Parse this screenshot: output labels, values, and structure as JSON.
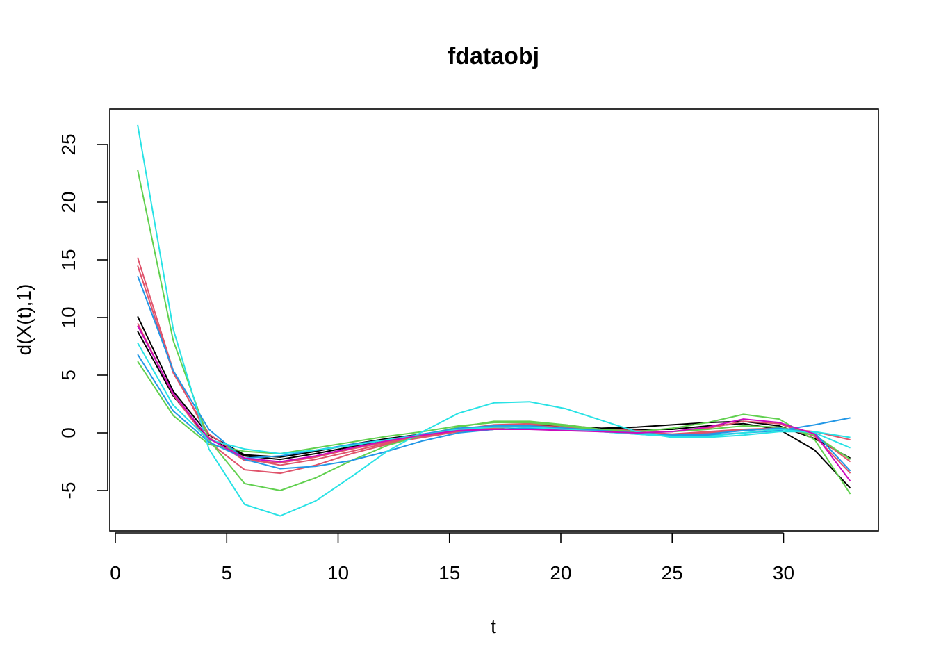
{
  "chart_data": {
    "type": "line",
    "title": "fdataobj",
    "xlabel": "t",
    "ylabel": "d(X(t),1)",
    "xlim": [
      0,
      33.5
    ],
    "ylim": [
      -8.5,
      28
    ],
    "xticks": [
      0,
      5,
      10,
      15,
      20,
      25,
      30
    ],
    "yticks": [
      -5,
      0,
      5,
      10,
      15,
      20,
      25
    ],
    "x": [
      1,
      2.6,
      4.2,
      5.8,
      7.4,
      9,
      10.6,
      12.2,
      13.8,
      15.4,
      17,
      18.6,
      20.2,
      21.8,
      23.4,
      25,
      26.6,
      28.2,
      29.8,
      31.4,
      33
    ],
    "series": [
      {
        "color": "#000000",
        "values": [
          8.8,
          3.2,
          -0.5,
          -2.0,
          -2.3,
          -1.8,
          -1.2,
          -0.6,
          -0.2,
          0.1,
          0.3,
          0.4,
          0.4,
          0.4,
          0.5,
          0.7,
          0.9,
          1.0,
          0.6,
          -0.5,
          -2.2
        ]
      },
      {
        "color": "#000000",
        "values": [
          10.1,
          3.6,
          -0.2,
          -1.9,
          -2.1,
          -1.6,
          -1.0,
          -0.5,
          -0.1,
          0.2,
          0.5,
          0.6,
          0.6,
          0.4,
          0.3,
          0.3,
          0.6,
          0.8,
          0.3,
          -1.5,
          -4.8
        ]
      },
      {
        "color": "#DF536B",
        "values": [
          15.2,
          5.4,
          -0.4,
          -2.4,
          -2.6,
          -2.1,
          -1.4,
          -0.8,
          -0.3,
          0.2,
          0.5,
          0.7,
          0.7,
          0.3,
          0.0,
          -0.2,
          0.0,
          0.2,
          0.4,
          0.1,
          -0.6
        ]
      },
      {
        "color": "#DF536B",
        "values": [
          9.5,
          3.3,
          -0.8,
          -3.2,
          -3.5,
          -2.8,
          -1.8,
          -1.0,
          -0.3,
          0.3,
          0.7,
          0.8,
          0.6,
          0.3,
          0.1,
          -0.1,
          0.1,
          0.3,
          0.4,
          -0.2,
          -2.5
        ]
      },
      {
        "color": "#DF536B",
        "values": [
          14.5,
          5.2,
          -0.1,
          -2.2,
          -2.8,
          -2.3,
          -1.6,
          -0.9,
          -0.4,
          0.1,
          0.4,
          0.6,
          0.5,
          0.3,
          0.2,
          0.1,
          0.4,
          1.0,
          0.8,
          -0.3,
          -3.5
        ]
      },
      {
        "color": "#61D04F",
        "values": [
          22.8,
          8.0,
          -0.6,
          -4.4,
          -5.0,
          -3.9,
          -2.4,
          -1.1,
          -0.2,
          0.5,
          1.0,
          1.0,
          0.7,
          0.3,
          0.1,
          0.4,
          0.9,
          1.6,
          1.2,
          -0.6,
          -5.3
        ]
      },
      {
        "color": "#61D04F",
        "values": [
          6.2,
          1.5,
          -1.0,
          -1.6,
          -1.8,
          -1.3,
          -0.8,
          -0.3,
          0.1,
          0.6,
          0.9,
          0.9,
          0.6,
          0.2,
          0.0,
          0.1,
          0.3,
          0.6,
          0.5,
          -0.2,
          -2.3
        ]
      },
      {
        "color": "#2297E6",
        "values": [
          13.6,
          5.4,
          0.3,
          -2.3,
          -3.1,
          -2.9,
          -2.4,
          -1.6,
          -0.7,
          0.0,
          0.3,
          0.4,
          0.3,
          0.1,
          -0.1,
          -0.3,
          -0.2,
          0.0,
          0.2,
          0.7,
          1.3
        ]
      },
      {
        "color": "#2297E6",
        "values": [
          6.8,
          1.9,
          -0.8,
          -2.2,
          -2.0,
          -1.5,
          -1.0,
          -0.6,
          -0.1,
          0.4,
          0.6,
          0.6,
          0.4,
          0.2,
          0.0,
          -0.2,
          -0.1,
          0.2,
          0.4,
          0.0,
          -3.3
        ]
      },
      {
        "color": "#28E2E5",
        "values": [
          26.7,
          9.0,
          -1.4,
          -6.2,
          -7.2,
          -5.9,
          -3.8,
          -1.6,
          0.1,
          1.7,
          2.6,
          2.7,
          2.1,
          1.1,
          0.1,
          -0.4,
          -0.4,
          -0.2,
          0.1,
          0.1,
          -0.4
        ]
      },
      {
        "color": "#28E2E5",
        "values": [
          7.8,
          2.4,
          -0.6,
          -1.4,
          -1.8,
          -1.5,
          -1.1,
          -0.6,
          -0.2,
          0.3,
          0.5,
          0.5,
          0.3,
          0.1,
          -0.1,
          -0.3,
          -0.3,
          0.0,
          0.3,
          0.0,
          -1.3
        ]
      },
      {
        "color": "#CD0BBC",
        "values": [
          9.3,
          3.4,
          -0.5,
          -2.2,
          -2.5,
          -2.0,
          -1.3,
          -0.7,
          -0.2,
          0.2,
          0.3,
          0.3,
          0.2,
          0.1,
          0.0,
          0.1,
          0.5,
          1.2,
          0.9,
          -0.1,
          -4.2
        ]
      }
    ]
  }
}
